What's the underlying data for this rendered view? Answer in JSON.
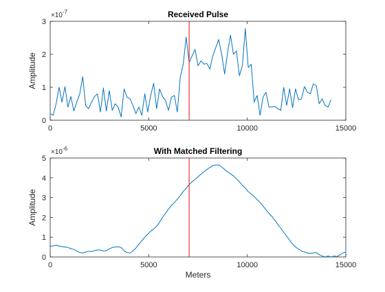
{
  "colors": {
    "series": "#0072BD",
    "marker_line": "#E8211E",
    "axes": "#262626"
  },
  "chart_data": [
    {
      "type": "line",
      "title": "Received Pulse",
      "xlabel": "",
      "ylabel": "Amplitude",
      "exponent_label": "×10",
      "exponent_power": "-7",
      "xlim": [
        0,
        15000
      ],
      "ylim": [
        0,
        3
      ],
      "xticks": [
        "0",
        "5000",
        "10000",
        "15000"
      ],
      "yticks": [
        "0",
        "1",
        "2",
        "3"
      ],
      "ytick_values": [
        0,
        1,
        2,
        3
      ],
      "xtick_values": [
        0,
        5000,
        10000,
        15000
      ],
      "grid": false,
      "vertical_marker_x": 7050,
      "x_step": 150,
      "y": [
        0.2,
        0.15,
        0.5,
        1.0,
        0.55,
        1.02,
        0.4,
        0.72,
        0.28,
        0.55,
        0.8,
        1.32,
        0.45,
        0.35,
        0.55,
        0.72,
        0.8,
        0.25,
        0.98,
        0.28,
        0.9,
        0.3,
        0.5,
        0.4,
        0.1,
        0.95,
        0.7,
        0.65,
        0.45,
        0.2,
        0.4,
        0.15,
        0.8,
        0.25,
        0.75,
        1.12,
        0.35,
        0.95,
        0.72,
        0.6,
        0.3,
        0.7,
        0.75,
        0.25,
        1.3,
        1.7,
        2.52,
        1.75,
        1.95,
        2.15,
        1.65,
        1.8,
        1.7,
        1.72,
        1.55,
        1.95,
        2.2,
        2.45,
        2.0,
        1.4,
        2.05,
        2.58,
        2.0,
        2.1,
        1.35,
        1.65,
        2.78,
        1.6,
        1.7,
        0.55,
        0.75,
        0.15,
        0.7,
        0.85,
        0.4,
        0.4,
        0.42,
        0.35,
        0.3,
        1.0,
        0.45,
        0.95,
        0.38,
        0.95,
        0.62,
        0.65,
        1.02,
        0.85,
        0.8,
        1.1,
        1.05,
        0.5,
        0.65,
        0.45,
        0.4,
        0.62
      ]
    },
    {
      "type": "line",
      "title": "With Matched Filtering",
      "xlabel": "Meters",
      "ylabel": "Amplitude",
      "exponent_label": "×10",
      "exponent_power": "-6",
      "xlim": [
        0,
        15000
      ],
      "ylim": [
        0,
        5
      ],
      "xticks": [
        "0",
        "5000",
        "10000",
        "15000"
      ],
      "yticks": [
        "0",
        "1",
        "2",
        "3",
        "4",
        "5"
      ],
      "ytick_values": [
        0,
        1,
        2,
        3,
        4,
        5
      ],
      "xtick_values": [
        0,
        5000,
        10000,
        15000
      ],
      "grid": false,
      "vertical_marker_x": 7050,
      "x_step": 150,
      "y": [
        0.55,
        0.55,
        0.6,
        0.55,
        0.52,
        0.5,
        0.48,
        0.42,
        0.38,
        0.3,
        0.22,
        0.2,
        0.25,
        0.28,
        0.28,
        0.32,
        0.35,
        0.35,
        0.3,
        0.32,
        0.4,
        0.48,
        0.5,
        0.52,
        0.48,
        0.32,
        0.22,
        0.2,
        0.3,
        0.45,
        0.65,
        0.82,
        1.0,
        1.15,
        1.3,
        1.42,
        1.55,
        1.75,
        2.0,
        2.2,
        2.42,
        2.6,
        2.75,
        2.92,
        3.1,
        3.3,
        3.48,
        3.65,
        3.8,
        3.92,
        4.05,
        4.18,
        4.3,
        4.42,
        4.52,
        4.62,
        4.65,
        4.65,
        4.55,
        4.42,
        4.3,
        4.2,
        4.1,
        3.95,
        3.8,
        3.62,
        3.48,
        3.3,
        3.18,
        3.05,
        2.9,
        2.75,
        2.58,
        2.38,
        2.2,
        2.05,
        1.85,
        1.65,
        1.45,
        1.25,
        1.05,
        0.85,
        0.65,
        0.5,
        0.4,
        0.3,
        0.25,
        0.2,
        0.18,
        0.2,
        0.22,
        0.12,
        0.05,
        0.0,
        0.05,
        0.0,
        0.05,
        0.02,
        0.1,
        0.2,
        0.25,
        0.28,
        0.3,
        0.32,
        0.36,
        0.42,
        0.48,
        0.5,
        0.5
      ]
    }
  ]
}
